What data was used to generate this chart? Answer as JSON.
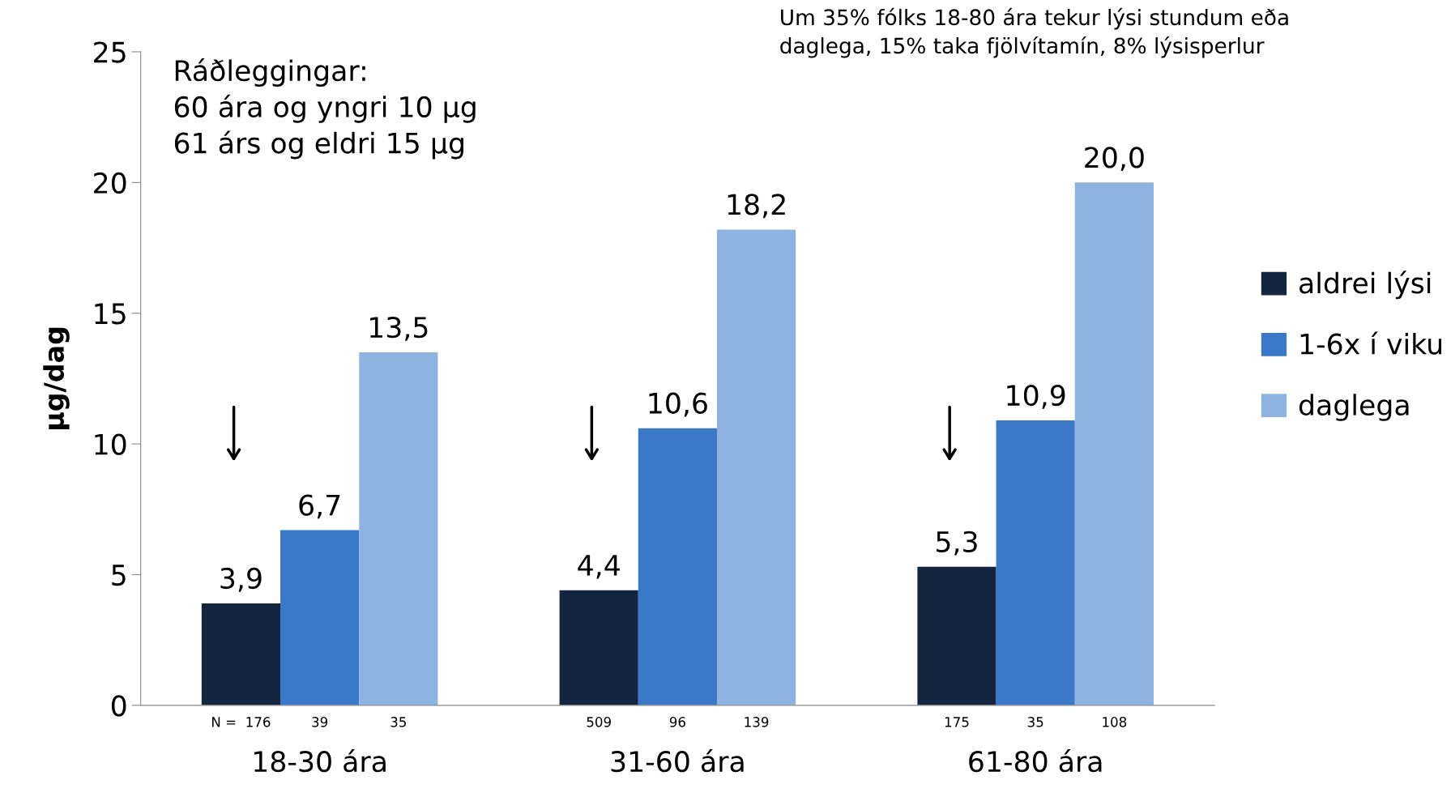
{
  "chart_data": {
    "type": "bar",
    "ylabel": "µg/dag",
    "categories": [
      "18-30 ára",
      "31-60 ára",
      "61-80 ára"
    ],
    "series": [
      {
        "name": "aldrei lýsi",
        "color": "#14253f",
        "values": [
          3.9,
          4.4,
          5.3
        ],
        "value_labels": [
          "3,9",
          "4,4",
          "5,3"
        ]
      },
      {
        "name": "1-6x í viku",
        "color": "#3a78c8",
        "values": [
          6.7,
          10.6,
          10.9
        ],
        "value_labels": [
          "6,7",
          "10,6",
          "10,9"
        ]
      },
      {
        "name": "daglega",
        "color": "#8fb3e0",
        "values": [
          13.5,
          18.2,
          20.0
        ],
        "value_labels": [
          "13,5",
          "18,2",
          "20,0"
        ]
      }
    ],
    "ylim": [
      0,
      25
    ],
    "yticks": [
      0,
      5,
      10,
      15,
      20,
      25
    ],
    "grid": false,
    "legend": "right",
    "annotations": [
      "Ráðleggingar:\n60 ára og yngri 10 µg\n61 árs og eldri 15 µg",
      "Um 35% fólks 18-80 ára tekur lýsi stundum eða\ndaglega, 15% taka fjölvítamín, 8% lýsisperlur",
      "N =  176",
      "39",
      "35",
      "509",
      "96",
      "139",
      "175",
      "35",
      "108"
    ]
  }
}
